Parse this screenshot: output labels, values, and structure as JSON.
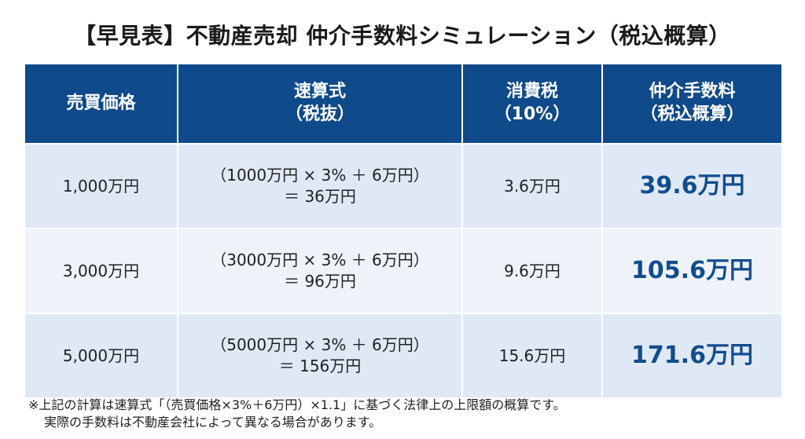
{
  "title": "【早見表】不動産売却 仲介手数料シミュレーション（税込概算）",
  "headers": {
    "price": "売買価格",
    "formula_1": "速算式",
    "formula_2": "（税抜）",
    "tax_1": "消費税",
    "tax_2": "（10%）",
    "fee_1": "仲介手数料",
    "fee_2": "（税込概算）"
  },
  "rows": [
    {
      "price": "1,000万円",
      "formula_line1": "（1000万円 × 3% ＋ 6万円）",
      "formula_line2": "＝ 36万円",
      "tax": "3.6万円",
      "total": "39.6万円"
    },
    {
      "price": "3,000万円",
      "formula_line1": "（3000万円 × 3% ＋ 6万円）",
      "formula_line2": "＝ 96万円",
      "tax": "9.6万円",
      "total": "105.6万円"
    },
    {
      "price": "5,000万円",
      "formula_line1": "（5000万円 × 3% ＋ 6万円）",
      "formula_line2": "＝ 156万円",
      "tax": "15.6万円",
      "total": "171.6万円"
    }
  ],
  "notes": {
    "line1": "※上記の計算は速算式「（売買価格×3%＋6万円）×1.1」に基づく法律上の上限額の概算です。",
    "line2": "実際の手数料は不動産会社によって異なる場合があります。"
  },
  "colors": {
    "header_bg": "#0f4a8a",
    "row_bg_dark": "#dfe9f5",
    "row_bg_light": "#eef3fa",
    "total_text": "#124d8e"
  }
}
